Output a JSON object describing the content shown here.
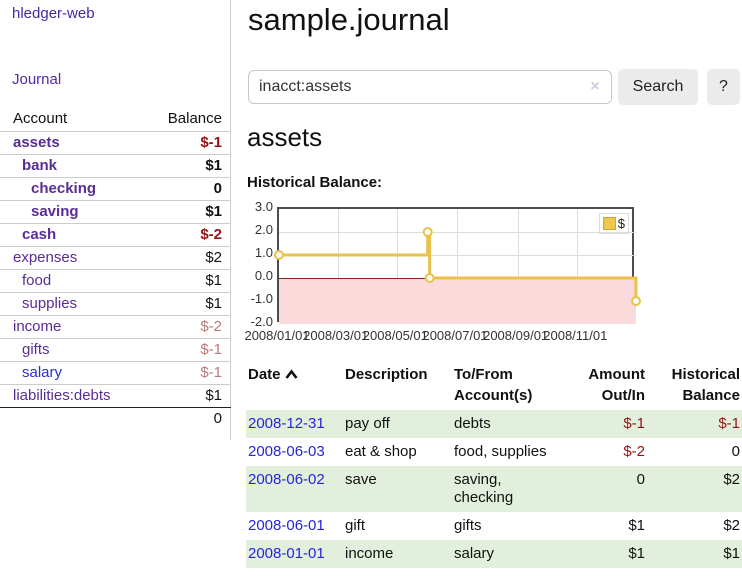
{
  "brand": "hledger-web",
  "nav": {
    "journal_label": "Journal"
  },
  "sidebar_table": {
    "account_header": "Account",
    "balance_header": "Balance",
    "rows": [
      {
        "account": "assets",
        "balance": "$-1",
        "level": 0,
        "bold": true,
        "neg": "strong"
      },
      {
        "account": "bank",
        "balance": "$1",
        "level": 1,
        "bold": true,
        "neg": null
      },
      {
        "account": "checking",
        "balance": "0",
        "level": 2,
        "bold": true,
        "neg": null
      },
      {
        "account": "saving",
        "balance": "$1",
        "level": 2,
        "bold": true,
        "neg": null
      },
      {
        "account": "cash",
        "balance": "$-2",
        "level": 1,
        "bold": true,
        "neg": "strong"
      },
      {
        "account": "expenses",
        "balance": "$2",
        "level": 0,
        "bold": false,
        "neg": null
      },
      {
        "account": "food",
        "balance": "$1",
        "level": 1,
        "bold": false,
        "neg": null
      },
      {
        "account": "supplies",
        "balance": "$1",
        "level": 1,
        "bold": false,
        "neg": null
      },
      {
        "account": "income",
        "balance": "$-2",
        "level": 0,
        "bold": false,
        "neg": "soft"
      },
      {
        "account": "gifts",
        "balance": "$-1",
        "level": 1,
        "bold": false,
        "neg": "soft"
      },
      {
        "account": "salary",
        "balance": "$-1",
        "level": 1,
        "bold": false,
        "neg": "soft",
        "blue": true
      },
      {
        "account": "liabilities:debts",
        "balance": "$1",
        "level": 0,
        "bold": false,
        "neg": null
      }
    ],
    "total": "0"
  },
  "header": {
    "title": "sample.journal"
  },
  "search": {
    "value": "inacct:assets",
    "clear_glyph": "×",
    "button_label": "Search",
    "help_label": "?"
  },
  "account_page": {
    "title": "assets",
    "chart_label": "Historical Balance:"
  },
  "chart_data": {
    "type": "line",
    "style": "step-after",
    "title": "Historical Balance:",
    "legend": [
      "$"
    ],
    "legend_position": "top-right",
    "ylim": [
      -2.0,
      3.0
    ],
    "yticks": [
      "3.0",
      "2.0",
      "1.0",
      "0.0",
      "-1.0",
      "-2.0"
    ],
    "ytick_values": [
      3,
      2,
      1,
      0,
      -1,
      -2
    ],
    "xticks": [
      "2008/01/01",
      "2008/03/01",
      "2008/05/01",
      "2008/07/01",
      "2008/09/01",
      "2008/11/01"
    ],
    "x_start": "2008-01-01",
    "x_end": "2008-12-31",
    "grid": true,
    "series": [
      {
        "name": "$",
        "points": [
          {
            "x": "2008-01-01",
            "y": 1
          },
          {
            "x": "2008-06-01",
            "y": 2
          },
          {
            "x": "2008-06-03",
            "y": 0
          },
          {
            "x": "2008-12-31",
            "y": -1
          }
        ]
      }
    ],
    "colors": {
      "line": "#e8c24b",
      "marker_fill": "#fdfcf5",
      "negative_fill": "#fadada",
      "zero_line": "#8e1a1a"
    }
  },
  "register_table": {
    "columns": [
      "Date",
      "Description",
      "To/From Account(s)",
      "Amount Out/In",
      "Historical Balance"
    ],
    "rows": [
      {
        "date": "2008-12-31",
        "description": "pay off",
        "accounts": "debts",
        "amount": "$-1",
        "balance": "$-1",
        "amount_neg": true,
        "balance_neg": true
      },
      {
        "date": "2008-06-03",
        "description": "eat & shop",
        "accounts": "food, supplies",
        "amount": "$-2",
        "balance": "0",
        "amount_neg": true,
        "balance_neg": false
      },
      {
        "date": "2008-06-02",
        "description": "save",
        "accounts": "saving, checking",
        "amount": "0",
        "balance": "$2",
        "amount_neg": false,
        "balance_neg": false
      },
      {
        "date": "2008-06-01",
        "description": "gift",
        "accounts": "gifts",
        "amount": "$1",
        "balance": "$2",
        "amount_neg": false,
        "balance_neg": false
      },
      {
        "date": "2008-01-01",
        "description": "income",
        "accounts": "salary",
        "amount": "$1",
        "balance": "$1",
        "amount_neg": false,
        "balance_neg": false
      }
    ]
  }
}
